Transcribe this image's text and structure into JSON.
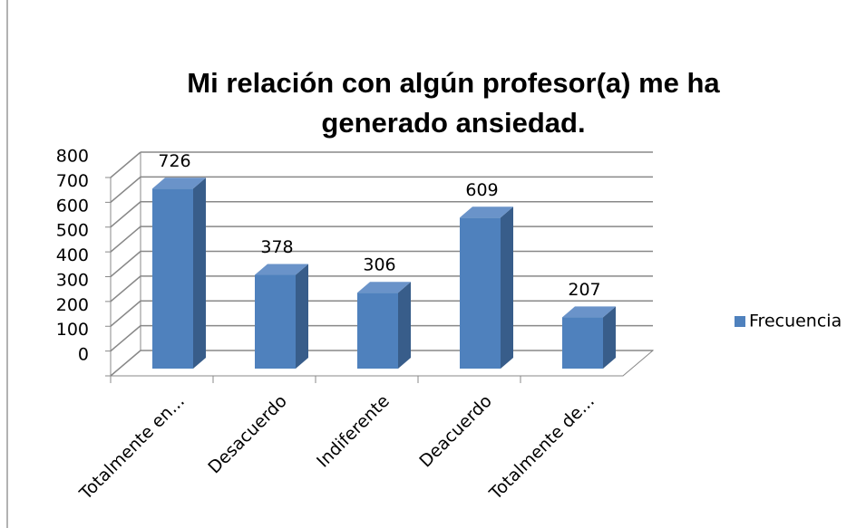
{
  "chart_data": {
    "type": "bar3d",
    "title": "Mi relación con algún profesor(a) me ha generado ansiedad.",
    "categories": [
      "Totalmente en...",
      "Desacuerdo",
      "Indiferente",
      "Deacuerdo",
      "Totalmente de..."
    ],
    "series": [
      {
        "name": "Frecuencia",
        "color": "#4f81bd",
        "values": [
          726,
          378,
          306,
          609,
          207
        ]
      }
    ],
    "ylim": [
      0,
      800
    ],
    "yticks": [
      0,
      100,
      200,
      300,
      400,
      500,
      600,
      700,
      800
    ],
    "grid": true,
    "legend": "right"
  }
}
